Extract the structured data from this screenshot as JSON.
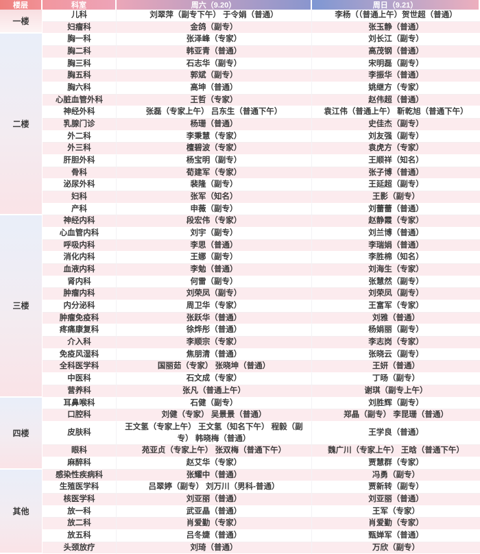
{
  "header": {
    "floor_col": "楼层",
    "department_col": "科室",
    "saturday_col": "周六（9.20）",
    "sunday_col": "周日（9.21）"
  },
  "colors": {
    "header_red": "#ee807d",
    "header_pink": "#eda4b8",
    "header_blue": "#7e97d3",
    "stripe_pink": "#fcebee",
    "floor_block_top_blue": "#e9eef9",
    "floor_block_bottom_pink": "#fae3e7"
  },
  "floors": [
    {
      "label": "一楼",
      "rows": [
        {
          "dept": "儿科",
          "sat": "刘翠萍（副专下午） 于令娟（普通）",
          "sun": "李杨（（普通上午）贺世超（普通）"
        },
        {
          "dept": "妇瘤科",
          "sat": "金鸽（副专）",
          "sun": "张玉静（普通）"
        }
      ]
    },
    {
      "label": "二楼",
      "rows": [
        {
          "dept": "胸一科",
          "sat": "张泽峰（专家）",
          "sun": "刘长江（副专）"
        },
        {
          "dept": "胸二科",
          "sat": "韩亚青（普通）",
          "sun": "高茂钢（普通）"
        },
        {
          "dept": "胸三科",
          "sat": "石志华（副专）",
          "sun": "宋明磊（副专）"
        },
        {
          "dept": "胸五科",
          "sat": "郭斌（副专）",
          "sun": "李振华（普通）"
        },
        {
          "dept": "胸六科",
          "sat": "高坤（普通）",
          "sun": "姚继方（专家）"
        },
        {
          "dept": "心脏血管外科",
          "sat": "王哲（专家）",
          "sun": "赵伟超（普通）"
        },
        {
          "dept": "神经外科",
          "sat": "张磊（专家上午） 吕东生（普通下午）",
          "sun": "袁江伟（普通上午） 靳乾旭（普通下午）"
        },
        {
          "dept": "乳腺门诊",
          "sat": "杨珊（普通）",
          "sun": "史佳杰（副专）"
        },
        {
          "dept": "外二科",
          "sat": "李秉慧（专家）",
          "sun": "刘友强（副专）"
        },
        {
          "dept": "外三科",
          "sat": "檀碧波（专家）",
          "sun": "袁虎方（专家）"
        },
        {
          "dept": "肝胆外科",
          "sat": "杨宝明（副专）",
          "sun": "王顺祥（知名）"
        },
        {
          "dept": "骨科",
          "sat": "荀建军（专家）",
          "sun": "张子博（普通）"
        },
        {
          "dept": "泌尿外科",
          "sat": "裴隆（副专）",
          "sun": "王延超（副专）"
        },
        {
          "dept": "妇科",
          "sat": "张军（知名）",
          "sun": "王影（副专）"
        },
        {
          "dept": "产科",
          "sat": "申薇（副专）",
          "sun": "刘蕾蕾（普通）"
        }
      ]
    },
    {
      "label": "三楼",
      "rows": [
        {
          "dept": "神经内科",
          "sat": "段宏伟（专家）",
          "sun": "赵静霞（专家）"
        },
        {
          "dept": "心血管内科",
          "sat": "刘宇（副专）",
          "sun": "刘兰博（普通）"
        },
        {
          "dept": "呼吸内科",
          "sat": "李思（普通）",
          "sun": "李瑞娟（普通）"
        },
        {
          "dept": "消化内科",
          "sat": "王娜（副专）",
          "sun": "李胜棉（知名）"
        },
        {
          "dept": "血液内科",
          "sat": "李勉（普通）",
          "sun": "刘海生（专家）"
        },
        {
          "dept": "肾内科",
          "sat": "何雷（副专）",
          "sun": "张慧然（副专）"
        },
        {
          "dept": "肿瘤内科",
          "sat": "刘荣凤（副专）",
          "sun": "刘荣凤（副专）"
        },
        {
          "dept": "内分泌科",
          "sat": "周卫华（专家）",
          "sun": "王富军（专家）"
        },
        {
          "dept": "肿瘤免疫科",
          "sat": "张跃华（普通）",
          "sun": "刘雅（普通）"
        },
        {
          "dept": "疼痛康复科",
          "sat": "徐烨彤（普通）",
          "sun": "杨娟丽（副专）"
        },
        {
          "dept": "介入科",
          "sat": "李顺宗（专家）",
          "sun": "李志岗（专家）"
        },
        {
          "dept": "免疫风湿科",
          "sat": "焦朋清（普通）",
          "sun": "张晓云（副专）"
        },
        {
          "dept": "全科医学科",
          "sat": "国丽茹（专家） 张晓坤（普通）",
          "sun": "王妍（普通）"
        },
        {
          "dept": "中医科",
          "sat": "石文成（专家）",
          "sun": "丁旸（副专）"
        },
        {
          "dept": "营养科",
          "sat": "张凡（普通上午）",
          "sun": "谢琪（副专上午）"
        }
      ]
    },
    {
      "label": "四楼",
      "rows": [
        {
          "dept": "耳鼻喉科",
          "sat": "石健（副专）",
          "sun": "刘胜辉（副专）"
        },
        {
          "dept": "口腔科",
          "sat": "刘健（专家） 吴景景（普通）",
          "sun": "郑晶（副专） 李昆珊（普通）"
        },
        {
          "dept": "皮肤科",
          "sat": "王文氢（专家上午） 王文氢（知名下午） 程毅（副专） 韩晓梅（普通）",
          "sun": "王学良（普通）"
        },
        {
          "dept": "眼科",
          "sat": "苑亚贞（专家上午） 张双梅（普通下午）",
          "sun": "魏广川（专家上午） 王晗（普通下午）"
        },
        {
          "dept": "麻醉科",
          "sat": "赵艾华（专家）",
          "sun": "贾慧群（专家）"
        }
      ]
    },
    {
      "label": "其他",
      "rows": [
        {
          "dept": "感染性疾病科",
          "sat": "张耀中（普通）",
          "sun": "冯勇（副专）"
        },
        {
          "dept": "生殖医学科",
          "sat": "吕翠婷（副专） 刘万川（男科-普通）",
          "sun": "贾新转（副专）"
        },
        {
          "dept": "核医学科",
          "sat": "刘亚丽（普通）",
          "sun": "刘亚丽（普通）"
        },
        {
          "dept": "放一科",
          "sat": "武亚晶（普通）",
          "sun": "王军（专家）"
        },
        {
          "dept": "放二科",
          "sat": "肖爱勤（专家）",
          "sun": "肖爱勤（专家）"
        },
        {
          "dept": "放五科",
          "sat": "吕冬婕（普通）",
          "sun": "甄婵军（普通）"
        },
        {
          "dept": "头颈放疗",
          "sat": "刘琦（普通）",
          "sun": "万欣（副专）"
        }
      ]
    }
  ]
}
